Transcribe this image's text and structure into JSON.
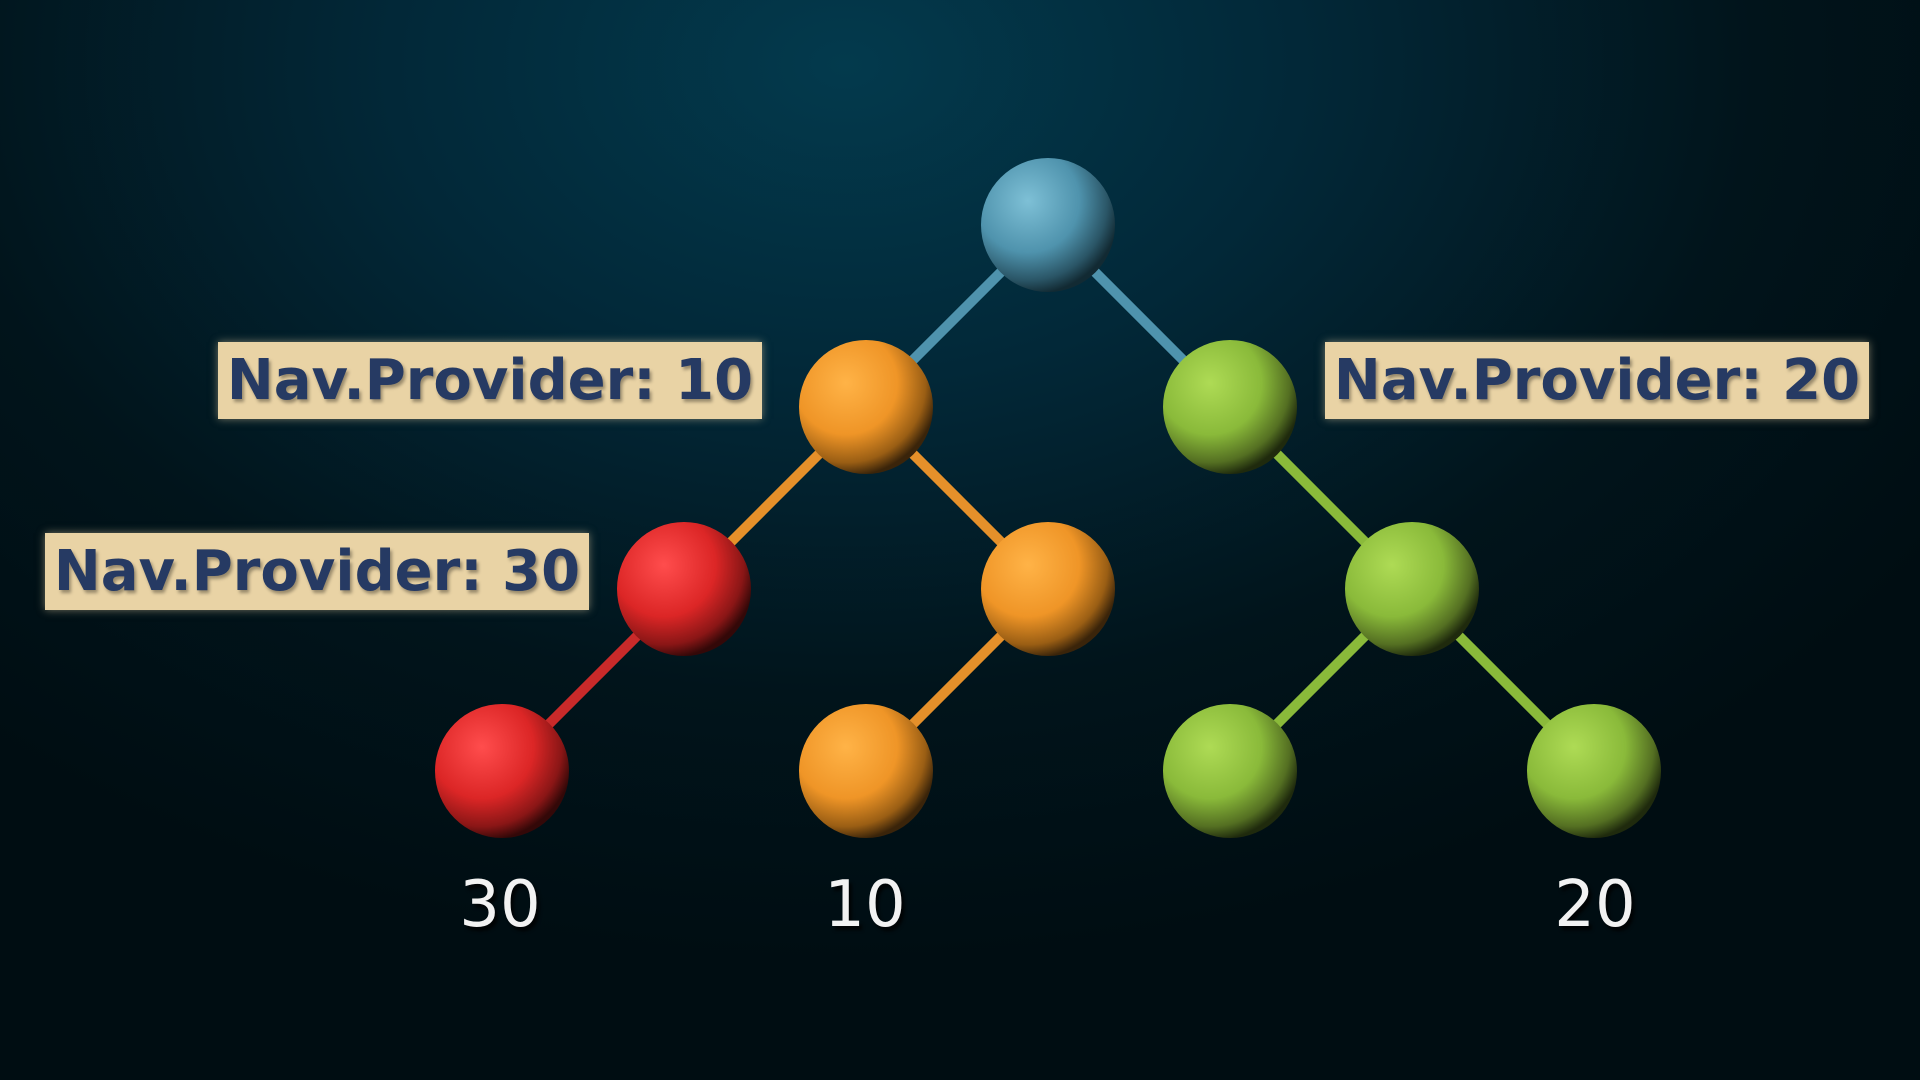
{
  "labels": {
    "left": "Nav.Provider: 10",
    "right": "Nav.Provider: 20",
    "lower_left": "Nav.Provider: 30"
  },
  "leaf_values": [
    "30",
    "10",
    "20"
  ],
  "colors": {
    "root": "#4f93ad",
    "orange": "#f0962a",
    "red": "#e02a2a",
    "green": "#8dba3c",
    "label_bg": "#e9d3a5",
    "label_text": "#263a63"
  },
  "nodes": [
    {
      "id": "root",
      "color": "root"
    },
    {
      "id": "orange-1",
      "color": "orange",
      "parent": "root"
    },
    {
      "id": "green-1",
      "color": "green",
      "parent": "root"
    },
    {
      "id": "red-1",
      "color": "red",
      "parent": "orange-1"
    },
    {
      "id": "orange-2",
      "color": "orange",
      "parent": "orange-1"
    },
    {
      "id": "green-2",
      "color": "green",
      "parent": "green-1"
    },
    {
      "id": "red-leaf",
      "color": "red",
      "parent": "red-1"
    },
    {
      "id": "orange-leaf",
      "color": "orange",
      "parent": "orange-2"
    },
    {
      "id": "green-leaf-1",
      "color": "green",
      "parent": "green-2"
    },
    {
      "id": "green-leaf-2",
      "color": "green",
      "parent": "green-2"
    }
  ]
}
